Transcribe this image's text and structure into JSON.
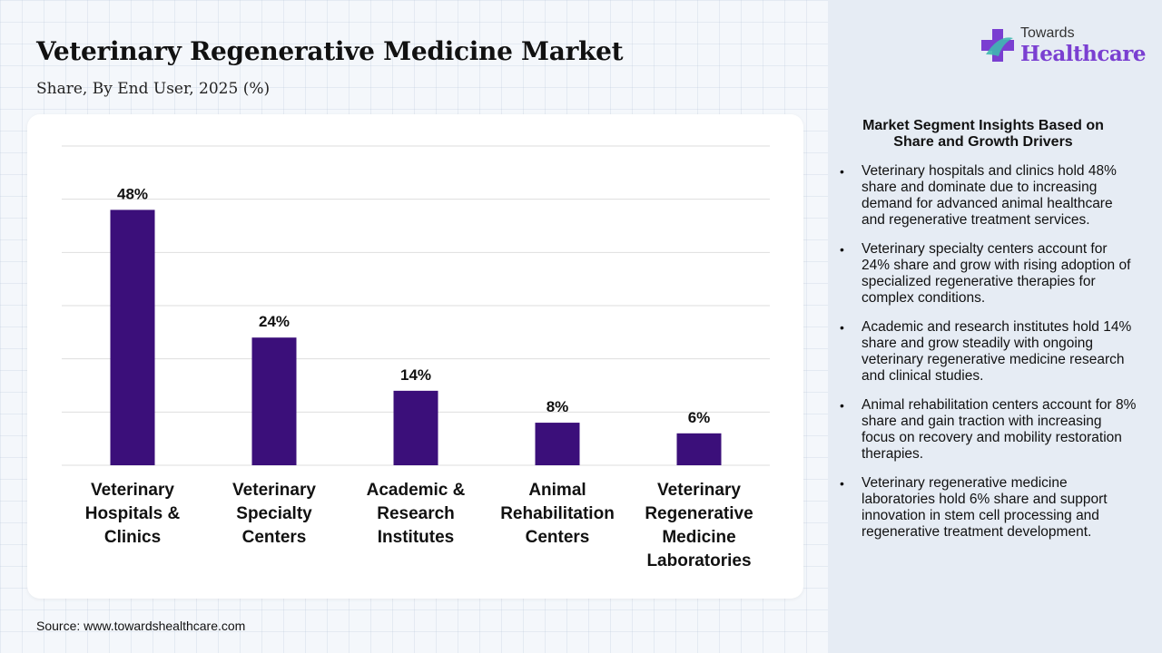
{
  "header": {
    "title": "Veterinary Regenerative Medicine Market",
    "subtitle": "Share, By End User, 2025 (%)"
  },
  "logo": {
    "small": "Towards",
    "big": "Healthcare"
  },
  "colors": {
    "bar": "#3b0f7a",
    "accent": "#7a3fd1",
    "grid": "#dedede"
  },
  "chart_data": {
    "type": "bar",
    "title": "Veterinary Regenerative Medicine Market",
    "subtitle": "Share, By End User, 2025 (%)",
    "categories": [
      "Veterinary Hospitals & Clinics",
      "Veterinary Specialty Centers",
      "Academic & Research Institutes",
      "Animal Rehabilitation Centers",
      "Veterinary Regenerative Medicine Laboratories"
    ],
    "category_lines": [
      [
        "Veterinary",
        "Hospitals &",
        "Clinics"
      ],
      [
        "Veterinary",
        "Specialty",
        "Centers"
      ],
      [
        "Academic &",
        "Research",
        "Institutes"
      ],
      [
        "Animal",
        "Rehabilitation",
        "Centers"
      ],
      [
        "Veterinary",
        "Regenerative",
        "Medicine",
        "Laboratories"
      ]
    ],
    "values": [
      48,
      24,
      14,
      8,
      6
    ],
    "value_labels": [
      "48%",
      "24%",
      "14%",
      "8%",
      "6%"
    ],
    "ylim": [
      0,
      60
    ],
    "xlabel": "",
    "ylabel": "",
    "grid": true,
    "legend": "none"
  },
  "insights": {
    "title": "Market Segment Insights Based on Share and Growth Drivers",
    "items": [
      "Veterinary hospitals and clinics hold 48% share and dominate due to increasing demand for advanced animal healthcare and regenerative treatment services.",
      "Veterinary specialty centers account for 24% share and grow with rising adoption of specialized regenerative therapies for complex conditions.",
      "Academic and research institutes hold 14% share and grow steadily with ongoing veterinary regenerative medicine research and clinical studies.",
      "Animal rehabilitation centers account for 8% share and gain traction with increasing focus on recovery and mobility restoration therapies.",
      "Veterinary regenerative medicine laboratories hold 6% share and support innovation in stem cell processing and regenerative treatment development."
    ]
  },
  "footer": {
    "source": "Source: www.towardshealthcare.com"
  }
}
